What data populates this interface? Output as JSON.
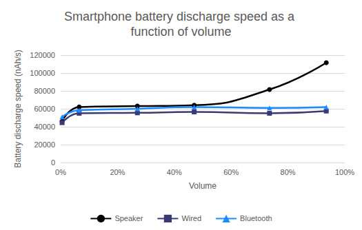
{
  "chart_data": {
    "type": "line",
    "title": "Smartphone battery discharge speed as a function of volume",
    "x_label": "Volume",
    "y_label": "Battery discharge speed (nAh/s)",
    "x": [
      0.5,
      6.5,
      27,
      47,
      73.5,
      93.5
    ],
    "series": [
      {
        "name": "Speaker",
        "color": "#000000",
        "marker": "circle",
        "line_style": "solid",
        "values": [
          46000,
          62000,
          63000,
          64000,
          81500,
          111500
        ]
      },
      {
        "name": "Wired",
        "color": "#3b3a78",
        "marker": "square",
        "line_style": "solid",
        "values": [
          44500,
          55000,
          55500,
          56500,
          55000,
          57500
        ]
      },
      {
        "name": "Bluetooth",
        "color": "#1a8cff",
        "marker": "triangle",
        "line_style": "solid",
        "values": [
          51000,
          58500,
          60000,
          62000,
          61000,
          62000
        ]
      }
    ],
    "xlim": [
      0,
      100
    ],
    "xticks": [
      {
        "value": 0,
        "label": "0%"
      },
      {
        "value": 20,
        "label": "20%"
      },
      {
        "value": 40,
        "label": "40%"
      },
      {
        "value": 60,
        "label": "60%"
      },
      {
        "value": 80,
        "label": "80%"
      },
      {
        "value": 100,
        "label": "100%"
      }
    ],
    "ylim": [
      0,
      120000
    ],
    "yticks": [
      0,
      20000,
      40000,
      60000,
      80000,
      100000,
      120000
    ],
    "grid": true,
    "legend": "bottom"
  }
}
